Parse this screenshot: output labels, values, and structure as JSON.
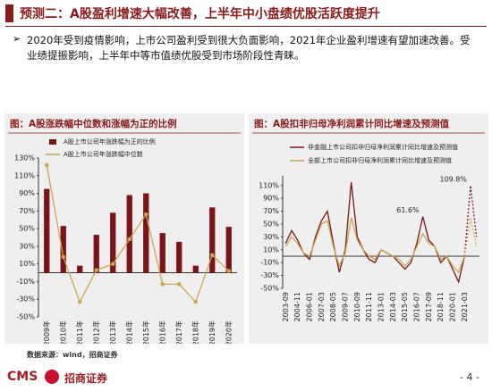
{
  "header": {
    "title": "预测二：A股盈利增速大幅改善，上半年中小盘绩优股活跃度提升"
  },
  "bullet": "2020年受到疫情影响，上市公司盈利受到很大负面影响，2021年企业盈利增速有望加速改善。受业绩提振影响，上半年中等市值绩优股受到市场阶段性青睐。",
  "chart_data": [
    {
      "type": "bar_line",
      "title": "图：A股涨跌幅中位数和涨幅为正的比例",
      "categories": [
        "2009年",
        "2010年",
        "2011年",
        "2012年",
        "2013年",
        "2014年",
        "2015年",
        "2016年",
        "2017年",
        "2018年",
        "2019年",
        "2020年"
      ],
      "series": [
        {
          "name": "A股上市公司年涨跌幅为正的比例",
          "color": "#7b1416",
          "kind": "bar",
          "values": [
            95,
            53,
            8,
            43,
            68,
            88,
            90,
            45,
            35,
            8,
            74,
            52
          ]
        },
        {
          "name": "A股上市公司年涨跌幅中位数",
          "color": "#c9a84c",
          "kind": "line",
          "values": [
            122,
            18,
            -33,
            3,
            10,
            38,
            66,
            -13,
            -13,
            -33,
            20,
            2
          ]
        }
      ],
      "ylim": [
        -50,
        130
      ],
      "yticks": [
        {
          "value": -50,
          "label": "-50%"
        },
        {
          "value": -30,
          "label": "-30%"
        },
        {
          "value": -10,
          "label": "-10%"
        },
        {
          "value": 10,
          "label": "10%"
        },
        {
          "value": 30,
          "label": "30%"
        },
        {
          "value": 50,
          "label": "50%"
        },
        {
          "value": 70,
          "label": "70%"
        },
        {
          "value": 90,
          "label": "90%"
        },
        {
          "value": 110,
          "label": "110%"
        },
        {
          "value": 130,
          "label": "130%"
        }
      ]
    },
    {
      "type": "line",
      "title": "图：A股扣非归母净利润累计同比增速及预测值",
      "categories": [
        "2003-09",
        null,
        "2004-11",
        null,
        "2006-01",
        null,
        "2007-03",
        null,
        "2008-05",
        null,
        "2009-07",
        null,
        "2010-09",
        null,
        "2011-11",
        null,
        "2013-01",
        null,
        "2014-03",
        null,
        "2015-05",
        null,
        "2016-07",
        null,
        "2017-09",
        null,
        "2018-11",
        null,
        "2020-01",
        null,
        "2021-03",
        null,
        null
      ],
      "dashed_from": 30,
      "series": [
        {
          "name": "非金融上市公司扣非归母净利润累计同比增速及预测值",
          "color": "#7b1416",
          "values": [
            20,
            40,
            25,
            5,
            -5,
            30,
            55,
            70,
            20,
            -25,
            10,
            115,
            30,
            10,
            -5,
            -10,
            10,
            5,
            0,
            -10,
            -20,
            -10,
            20,
            61.6,
            25,
            15,
            -10,
            0,
            -20,
            -40,
            0,
            109.8,
            30
          ],
          "value_labels": [
            null,
            null,
            null,
            null,
            null,
            null,
            null,
            null,
            null,
            null,
            null,
            null,
            null,
            null,
            null,
            null,
            null,
            null,
            null,
            null,
            null,
            null,
            null,
            "61.6%",
            null,
            null,
            null,
            null,
            null,
            null,
            null,
            "109.8%",
            null
          ]
        },
        {
          "name": "全部上市公司扣非归母净利润累计同比增速及预测值",
          "color": "#c9a84c",
          "values": [
            15,
            30,
            20,
            5,
            0,
            25,
            50,
            55,
            15,
            -15,
            5,
            60,
            25,
            10,
            0,
            -5,
            10,
            5,
            0,
            -5,
            -15,
            -5,
            15,
            35,
            20,
            15,
            -5,
            0,
            -15,
            -25,
            0,
            60,
            15
          ]
        }
      ],
      "ylim": [
        -50,
        125
      ],
      "yticks": [
        {
          "value": -50,
          "label": "-50%"
        },
        {
          "value": -30,
          "label": "-30%"
        },
        {
          "value": -10,
          "label": "-10%"
        },
        {
          "value": 10,
          "label": "10%"
        },
        {
          "value": 30,
          "label": "30%"
        },
        {
          "value": 50,
          "label": "50%"
        },
        {
          "value": 70,
          "label": "70%"
        },
        {
          "value": 90,
          "label": "90%"
        },
        {
          "value": 110,
          "label": "110%"
        }
      ]
    }
  ],
  "source": "数据来源：wind，招商证券",
  "footer": {
    "logo": "CMS",
    "company": "招商证券",
    "page": "- 4 -"
  }
}
